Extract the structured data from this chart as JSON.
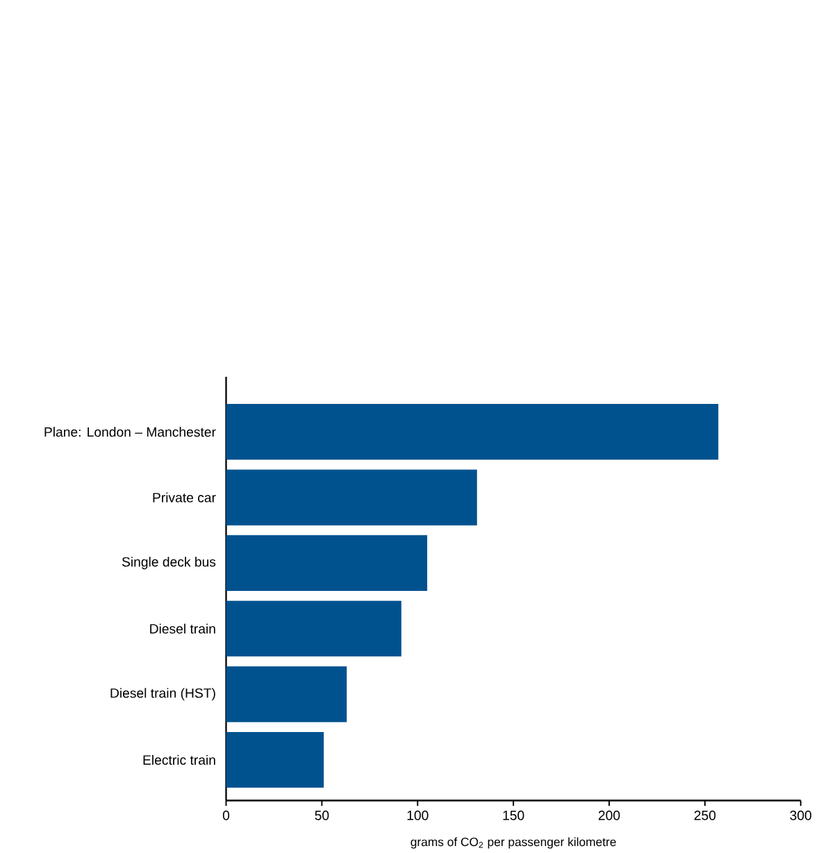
{
  "chart_data": {
    "type": "bar",
    "orientation": "horizontal",
    "categories": [
      "Plane: London – Manchester",
      "Private car",
      "Single deck bus",
      "Diesel train",
      "Diesel train (HST)",
      "Electric train"
    ],
    "values": [
      257,
      131,
      105,
      91.5,
      63,
      51
    ],
    "color": "#00528f",
    "xlabel": "grams of CO$_{2}$ per passenger kilometre",
    "xlim": [
      0,
      300
    ],
    "xticks": [
      0,
      50,
      100,
      150,
      200,
      250,
      300
    ],
    "grid": false
  }
}
